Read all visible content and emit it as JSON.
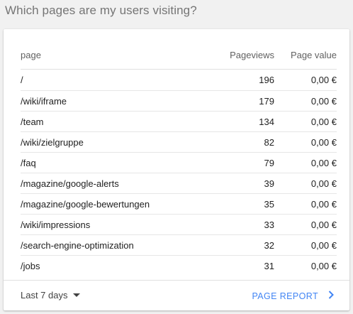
{
  "question": "Which pages are my users visiting?",
  "table": {
    "headers": {
      "page": "page",
      "pageviews": "Pageviews",
      "page_value": "Page value"
    },
    "rows": [
      {
        "page": "/",
        "pageviews": "196",
        "page_value": "0,00 €"
      },
      {
        "page": "/wiki/iframe",
        "pageviews": "179",
        "page_value": "0,00 €"
      },
      {
        "page": "/team",
        "pageviews": "134",
        "page_value": "0,00 €"
      },
      {
        "page": "/wiki/zielgruppe",
        "pageviews": "82",
        "page_value": "0,00 €"
      },
      {
        "page": "/faq",
        "pageviews": "79",
        "page_value": "0,00 €"
      },
      {
        "page": "/magazine/google-alerts",
        "pageviews": "39",
        "page_value": "0,00 €"
      },
      {
        "page": "/magazine/google-bewertungen",
        "pageviews": "35",
        "page_value": "0,00 €"
      },
      {
        "page": "/wiki/impressions",
        "pageviews": "33",
        "page_value": "0,00 €"
      },
      {
        "page": "/search-engine-optimization",
        "pageviews": "32",
        "page_value": "0,00 €"
      },
      {
        "page": "/jobs",
        "pageviews": "31",
        "page_value": "0,00 €"
      }
    ]
  },
  "footer": {
    "date_range": "Last 7 days",
    "report_link": "PAGE REPORT"
  },
  "icons": {
    "dropdown": "caret-down-icon",
    "report": "chevron-right-icon"
  },
  "colors": {
    "link": "#4285f4",
    "question": "#757575"
  }
}
